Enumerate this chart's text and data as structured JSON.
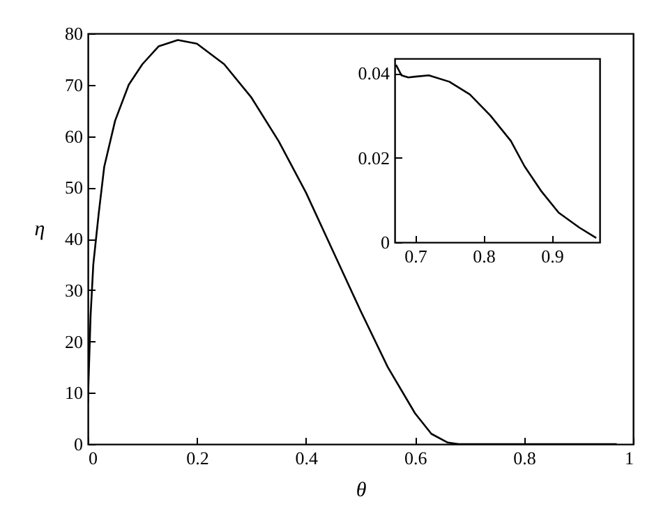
{
  "chart_data": [
    {
      "type": "line",
      "xlabel": "θ",
      "ylabel": "η",
      "xlim": [
        0,
        1
      ],
      "ylim": [
        0,
        80
      ],
      "xticks": [
        0,
        0.2,
        0.4,
        0.6,
        0.8,
        1
      ],
      "yticks": [
        0,
        10,
        20,
        30,
        40,
        50,
        60,
        70,
        80
      ],
      "x": [
        0,
        0.005,
        0.01,
        0.02,
        0.03,
        0.05,
        0.075,
        0.1,
        0.13,
        0.165,
        0.2,
        0.25,
        0.3,
        0.35,
        0.4,
        0.45,
        0.5,
        0.55,
        0.6,
        0.63,
        0.66,
        0.68,
        0.8,
        0.97
      ],
      "series": [
        {
          "color": "#000000",
          "values": [
            8,
            25,
            35,
            45,
            54,
            63,
            70,
            74,
            77.5,
            78.7,
            78,
            74,
            67.5,
            59,
            49,
            37.5,
            26,
            15,
            6,
            2,
            0.3,
            0,
            0,
            0
          ]
        }
      ]
    },
    {
      "type": "line",
      "xlim": [
        0.67,
        0.97
      ],
      "ylim": [
        0,
        0.0435
      ],
      "xticks": [
        0.7,
        0.8,
        0.9
      ],
      "yticks": [
        0,
        0.02,
        0.04
      ],
      "x": [
        0.672,
        0.68,
        0.69,
        0.7,
        0.72,
        0.75,
        0.78,
        0.81,
        0.84,
        0.86,
        0.885,
        0.91,
        0.94,
        0.965
      ],
      "series": [
        {
          "color": "#000000",
          "values": [
            0.042,
            0.0395,
            0.039,
            0.0392,
            0.0395,
            0.038,
            0.035,
            0.03,
            0.024,
            0.018,
            0.012,
            0.007,
            0.0035,
            0.001
          ]
        }
      ]
    }
  ]
}
